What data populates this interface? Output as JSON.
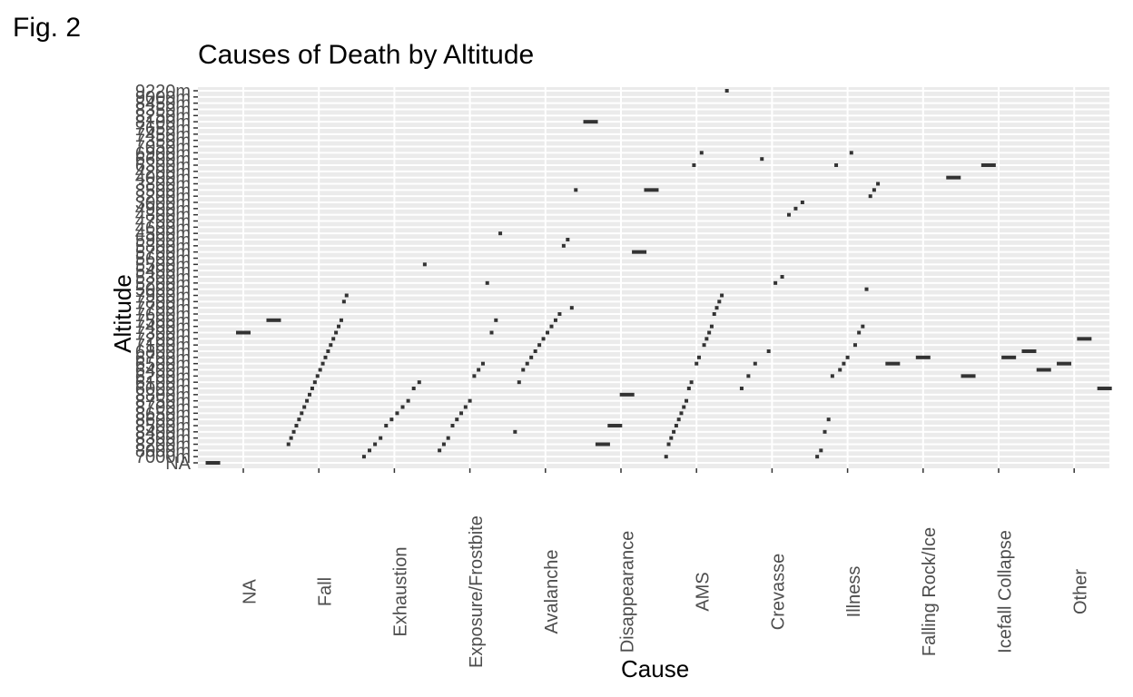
{
  "figure": {
    "label": "Fig. 2"
  },
  "chart_data": {
    "type": "scatter",
    "title": "Causes of Death by Altitude",
    "xlabel": "Cause",
    "ylabel": "Altitude",
    "categories": [
      "NA",
      "Fall",
      "Exhaustion",
      "Exposure/Frostbite",
      "Avalanche",
      "Disappearance",
      "AMS",
      "Crevasse",
      "Illness",
      "Falling Rock/Ice",
      "Icefall Collapse",
      "Other"
    ],
    "y_tick_labels": [
      "NA",
      "7000m",
      "8000m",
      "8200m",
      "8300m",
      "8400m",
      "8500m",
      "8600m",
      "8650m",
      "8700m",
      "8750m",
      "8800m",
      "6000m",
      "6100m",
      "6200m",
      "6400m",
      "6500m",
      "6700m",
      "6800m",
      "7100m",
      "7200m",
      "7300m",
      "7400m",
      "7500m",
      "7600m",
      "7700m",
      "7800m",
      "7900m",
      "5000m",
      "5200m",
      "5300m",
      "5400m",
      "5500m",
      "5600m",
      "5700m",
      "5800m",
      "5900m",
      "4500m",
      "4600m",
      "4700m",
      "4800m",
      "4900m",
      "3000m",
      "3200m",
      "3500m",
      "3800m",
      "4000m",
      "4200m",
      "6300m",
      "6600m",
      "6900m",
      "7050m",
      "7350m",
      "7450m",
      "7650m",
      "8100m",
      "8250m",
      "8350m",
      "8450m",
      "9000m",
      "9220m"
    ],
    "y_scale": "discrete",
    "grid": true,
    "mark": "short horizontal segment (jittered)",
    "series": [
      {
        "category": "NA",
        "y": [
          "NA",
          "7300m",
          "7500m"
        ]
      },
      {
        "category": "Fall",
        "y": [
          "8200m",
          "8300m",
          "8400m",
          "8500m",
          "8600m",
          "8650m",
          "8700m",
          "8750m",
          "8800m",
          "6000m",
          "6100m",
          "6200m",
          "6400m",
          "6500m",
          "6700m",
          "6800m",
          "7100m",
          "7200m",
          "7300m",
          "7400m",
          "7500m",
          "7800m",
          "7900m",
          "7950m"
        ]
      },
      {
        "category": "Exhaustion",
        "y": [
          "7000m",
          "8000m",
          "8200m",
          "8300m",
          "8500m",
          "8600m",
          "8650m",
          "8700m",
          "8750m",
          "6000m",
          "6100m",
          "5500m"
        ]
      },
      {
        "category": "Exposure/Frostbite",
        "y": [
          "8000m",
          "8200m",
          "8300m",
          "8500m",
          "8600m",
          "8650m",
          "8700m",
          "8750m",
          "6200m",
          "6400m",
          "6500m",
          "5200m",
          "7300m",
          "7500m",
          "4500m"
        ]
      },
      {
        "category": "Avalanche",
        "y": [
          "8400m",
          "6100m",
          "6400m",
          "6500m",
          "6700m",
          "6800m",
          "7100m",
          "7200m",
          "7300m",
          "7400m",
          "7500m",
          "7600m",
          "5800m",
          "5900m",
          "7700m",
          "3500m"
        ]
      },
      {
        "category": "Disappearance",
        "y": [
          "8100m",
          "8200m",
          "8500m",
          "8800m",
          "5700m",
          "3500m"
        ]
      },
      {
        "category": "AMS",
        "y": [
          "7000m",
          "8200m",
          "8300m",
          "8400m",
          "8500m",
          "8600m",
          "8650m",
          "8700m",
          "8750m",
          "6000m",
          "6100m",
          "6300m",
          "6500m",
          "6700m",
          "6900m",
          "7100m",
          "7200m",
          "7300m",
          "7400m",
          "7600m",
          "7700m",
          "7800m",
          "7900m",
          "7950m",
          "9220m"
        ]
      },
      {
        "category": "Crevasse",
        "y": [
          "6000m",
          "6200m",
          "6500m",
          "6600m",
          "6800m",
          "5200m",
          "5300m",
          "4800m",
          "4900m",
          "3000m"
        ]
      },
      {
        "category": "Illness",
        "y": [
          "7000m",
          "8000m",
          "8400m",
          "8600m",
          "6200m",
          "6300m",
          "6400m",
          "6500m",
          "6700m",
          "6900m",
          "7100m",
          "7300m",
          "7400m",
          "5000m",
          "3200m",
          "3500m",
          "3800m"
        ]
      },
      {
        "category": "Falling Rock/Ice",
        "y": [
          "6500m",
          "6700m",
          "4000m"
        ]
      },
      {
        "category": "Icefall Collapse",
        "y": [
          "6200m",
          "6300m",
          "6700m",
          "6800m"
        ]
      },
      {
        "category": "Other",
        "y": [
          "6400m",
          "6500m",
          "7200m",
          "6000m"
        ]
      }
    ]
  }
}
